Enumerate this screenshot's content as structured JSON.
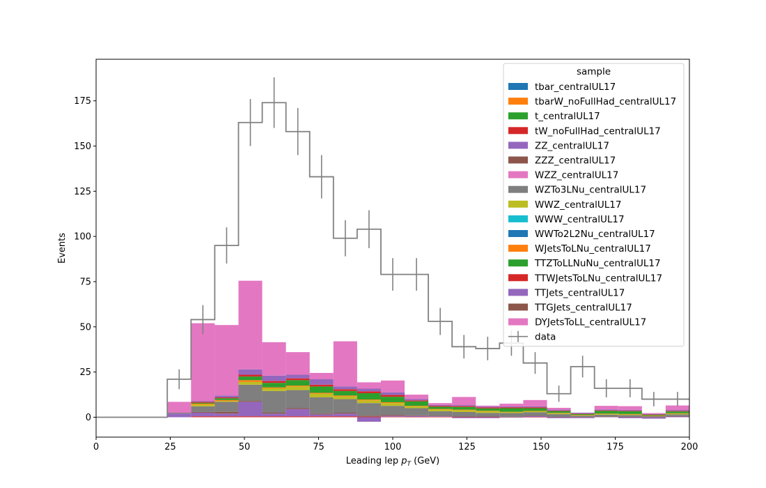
{
  "chart_data": {
    "type": "bar",
    "xlabel": "Leading lep",
    "xlabel_sub_symbol": "p",
    "xlabel_sub_index": "T",
    "xlabel_unit": "(GeV)",
    "ylabel": "Events",
    "xlim": [
      0,
      200
    ],
    "ylim": [
      -11,
      198
    ],
    "x_ticks": [
      0,
      25,
      50,
      75,
      100,
      125,
      150,
      175,
      200
    ],
    "y_ticks": [
      0,
      25,
      50,
      75,
      100,
      125,
      150,
      175
    ],
    "grid": false,
    "legend_placement": "top-right",
    "legend_title": "sample",
    "bin_edges": [
      0,
      8,
      16,
      24,
      32,
      40,
      48,
      56,
      64,
      72,
      80,
      88,
      96,
      104,
      112,
      120,
      128,
      136,
      144,
      152,
      160,
      168,
      176,
      184,
      192,
      200
    ],
    "series": [
      {
        "name": "tbar_centralUL17",
        "color": "#1f77b4",
        "values": [
          0,
          0,
          0,
          0,
          0,
          0,
          0,
          0,
          0,
          0,
          0,
          0,
          0,
          0,
          0,
          0,
          0,
          0,
          0,
          0,
          0,
          0,
          0,
          0,
          0
        ]
      },
      {
        "name": "tbarW_noFullHad_centralUL17",
        "color": "#ff7f0e",
        "values": [
          0,
          0,
          0,
          0,
          0,
          0,
          0,
          0,
          0,
          0,
          0,
          0,
          0,
          0,
          0,
          0,
          0,
          0,
          0,
          0,
          0,
          0,
          0,
          0,
          0
        ]
      },
      {
        "name": "t_centralUL17",
        "color": "#2ca02c",
        "values": [
          0,
          0,
          0,
          0,
          0,
          0,
          0,
          0,
          0,
          0,
          0,
          0,
          0,
          0,
          0,
          0,
          0,
          0,
          0,
          0,
          0,
          0,
          0,
          0,
          0
        ]
      },
      {
        "name": "tW_noFullHad_centralUL17",
        "color": "#d62728",
        "values": [
          0,
          0,
          0,
          0,
          0.5,
          0.5,
          0.5,
          0.5,
          0.5,
          0.5,
          0.5,
          0.3,
          0.3,
          0.2,
          0.2,
          0.2,
          0.2,
          0.1,
          0.1,
          0.1,
          0,
          0,
          0.1,
          0,
          0
        ]
      },
      {
        "name": "ZZ_centralUL17",
        "color": "#9467bd",
        "values": [
          0,
          0,
          0,
          2,
          2,
          1.5,
          8,
          1.5,
          4,
          1,
          1.5,
          -2.5,
          0.5,
          0.5,
          0.3,
          -0.5,
          -0.5,
          -0.2,
          0.5,
          -0.5,
          -0.5,
          0.3,
          -0.5,
          -0.8,
          0.5
        ]
      },
      {
        "name": "ZZZ_centralUL17",
        "color": "#8c564b",
        "values": [
          0,
          0,
          0,
          0,
          0.5,
          1,
          0.5,
          0.5,
          0.5,
          0.5,
          0.5,
          0.5,
          0.5,
          0.3,
          0.3,
          0.2,
          0.2,
          0.2,
          0.2,
          0.1,
          0.1,
          0.1,
          0.1,
          0.1,
          0.1
        ]
      },
      {
        "name": "WZZ_centralUL17",
        "color": "#e377c2",
        "values": [
          0,
          0,
          0,
          0,
          0,
          0,
          0,
          0,
          0,
          0,
          0,
          0,
          0,
          0,
          0,
          0,
          0,
          0,
          0,
          0,
          0,
          0,
          0,
          0,
          0
        ]
      },
      {
        "name": "WZTo3LNu_centralUL17",
        "color": "#7f7f7f",
        "values": [
          0,
          0,
          0,
          0.5,
          3,
          5.5,
          9,
          12,
          10,
          9,
          7.5,
          7,
          5,
          4,
          2.5,
          2.5,
          2,
          2,
          2,
          1.5,
          0.8,
          1,
          1,
          0.5,
          1
        ]
      },
      {
        "name": "WWZ_centralUL17",
        "color": "#bcbd22",
        "values": [
          0,
          0,
          0,
          0,
          1,
          0.5,
          1.5,
          1.5,
          2,
          2,
          1.5,
          1.5,
          1.5,
          1,
          1,
          1,
          1,
          0.5,
          0.5,
          0.5,
          0.3,
          0.5,
          0.5,
          0.2,
          0.5
        ]
      },
      {
        "name": "WWW_centralUL17",
        "color": "#17becf",
        "values": [
          0,
          0,
          0,
          0,
          0,
          0,
          0,
          0,
          0,
          0,
          0,
          0,
          0,
          0,
          0,
          0,
          0,
          0,
          0,
          0,
          0,
          0,
          0,
          0,
          0
        ]
      },
      {
        "name": "WWTo2L2Nu_centralUL17",
        "color": "#1f77b4",
        "values": [
          0,
          0,
          0,
          0,
          0,
          0,
          0,
          0,
          0,
          0,
          0,
          0,
          0,
          0,
          0,
          0,
          0,
          0,
          0,
          0,
          0,
          0,
          0,
          0,
          0
        ]
      },
      {
        "name": "WJetsToLNu_centralUL17",
        "color": "#ff7f0e",
        "values": [
          0,
          0,
          0,
          0,
          0.5,
          0.5,
          1,
          0.5,
          0.5,
          0.5,
          0.5,
          0.5,
          0.5,
          0.3,
          0.3,
          0.3,
          0.2,
          0.2,
          0.2,
          0.2,
          0.1,
          0.1,
          0.1,
          0.1,
          0.1
        ]
      },
      {
        "name": "TTZToLLNuNu_centralUL17",
        "color": "#2ca02c",
        "values": [
          0,
          0,
          0,
          0,
          0.5,
          1,
          2,
          2.5,
          3,
          3.5,
          2.5,
          3.5,
          3,
          2.5,
          1.2,
          1.5,
          1.3,
          2,
          1.5,
          1,
          0.5,
          1.5,
          1.5,
          0.5,
          1
        ]
      },
      {
        "name": "TTWJetsToLNu_centralUL17",
        "color": "#d62728",
        "values": [
          0,
          0,
          0,
          0,
          0.5,
          0.5,
          1,
          1,
          1,
          1,
          1,
          1,
          1,
          0.5,
          0.5,
          0.5,
          0.5,
          0.5,
          0.5,
          0.3,
          0.2,
          0.3,
          0.3,
          0.1,
          0.3
        ]
      },
      {
        "name": "TTJets_centralUL17",
        "color": "#9467bd",
        "values": [
          0,
          0,
          0,
          0,
          0.5,
          1,
          3,
          3,
          2,
          3,
          1.5,
          1.5,
          1.5,
          0.7,
          0.5,
          0.5,
          0.5,
          0.5,
          0.5,
          0.5,
          0.5,
          0.5,
          0.5,
          0.3,
          0.5
        ]
      },
      {
        "name": "TTGJets_centralUL17",
        "color": "#8c564b",
        "values": [
          0,
          0,
          0,
          0,
          0,
          0,
          0,
          0,
          0,
          0,
          0,
          0,
          0,
          0,
          0,
          0,
          0,
          0,
          0,
          0,
          0,
          0,
          0,
          0,
          0
        ]
      },
      {
        "name": "DYJetsToLL_centralUL17",
        "color": "#e377c2",
        "values": [
          0,
          0,
          0,
          6,
          43,
          39,
          49,
          18.5,
          12.5,
          3.5,
          25,
          3.5,
          6.5,
          2.5,
          1,
          4.5,
          0.5,
          1.5,
          3.5,
          1,
          0,
          2,
          2,
          0.5,
          2.5
        ]
      }
    ],
    "data": {
      "name": "data",
      "color": "#808080",
      "values": [
        0,
        0,
        0,
        21,
        54,
        95,
        163,
        174,
        158,
        133,
        99,
        104,
        79,
        79,
        53,
        39,
        38,
        41,
        30,
        13,
        28,
        16,
        16,
        10,
        10
      ],
      "errors": [
        0,
        0,
        0,
        5.5,
        8,
        10,
        13,
        14,
        13,
        12,
        10,
        10.5,
        9,
        9,
        7.5,
        6.5,
        6.5,
        7,
        6,
        4.5,
        6,
        5,
        5,
        4,
        4
      ]
    }
  }
}
